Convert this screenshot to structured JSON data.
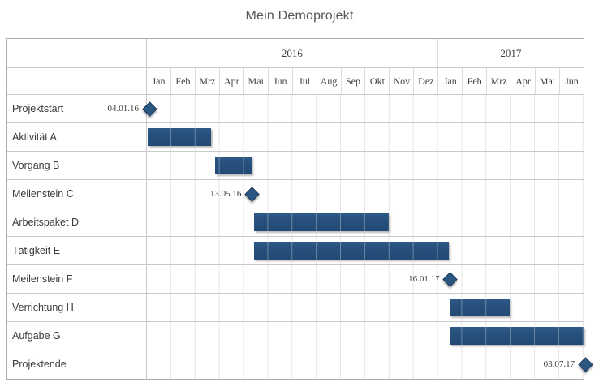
{
  "title": "Mein Demoprojekt",
  "colors": {
    "bar": "#27507D",
    "milestone": "#2B5681"
  },
  "chart_data": {
    "type": "bar",
    "subtype": "gantt",
    "title": "Mein Demoprojekt",
    "axis": {
      "unit": "month",
      "start": "Jan 2016",
      "end": "Jun 2017",
      "total_months": 18
    },
    "years": [
      {
        "label": "2016",
        "months": 12
      },
      {
        "label": "2017",
        "months": 6
      }
    ],
    "month_labels": [
      "Jan",
      "Feb",
      "Mrz",
      "Apr",
      "Mai",
      "Jun",
      "Jul",
      "Aug",
      "Sep",
      "Okt",
      "Nov",
      "Dez",
      "Jan",
      "Feb",
      "Mrz",
      "Apr",
      "Mai",
      "Jun"
    ],
    "tasks": [
      {
        "name": "Projektstart",
        "type": "milestone",
        "date_label": "04.01.16",
        "month": 0.1
      },
      {
        "name": "Aktivität A",
        "type": "bar",
        "start": 0.05,
        "end": 2.65
      },
      {
        "name": "Vorgang B",
        "type": "bar",
        "start": 2.82,
        "end": 4.33
      },
      {
        "name": "Meilenstein C",
        "type": "milestone",
        "date_label": "13.05.16",
        "month": 4.33
      },
      {
        "name": "Arbeitspaket D",
        "type": "bar",
        "start": 4.4,
        "end": 9.97
      },
      {
        "name": "Tätigkeit E",
        "type": "bar",
        "start": 4.4,
        "end": 12.43
      },
      {
        "name": "Meilenstein F",
        "type": "milestone",
        "date_label": "16.01.17",
        "month": 12.5
      },
      {
        "name": "Verrichtung H",
        "type": "bar",
        "start": 12.47,
        "end": 14.95
      },
      {
        "name": "Aufgabe G",
        "type": "bar",
        "start": 12.47,
        "end": 18.0
      },
      {
        "name": "Projektende",
        "type": "milestone",
        "date_label": "03.07.17",
        "month": 18.07
      }
    ]
  }
}
